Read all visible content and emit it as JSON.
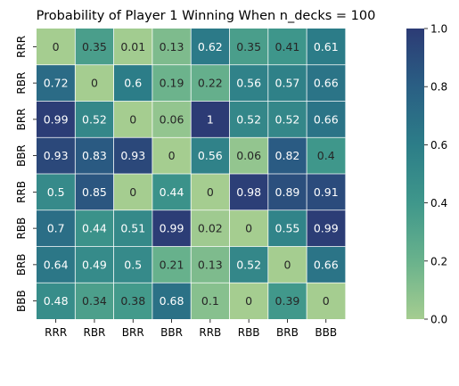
{
  "chart_data": {
    "type": "heatmap",
    "title": "Probability of Player 1 Winning When n_decks = 100",
    "xlabel": "",
    "ylabel": "",
    "x_categories": [
      "RRR",
      "RBR",
      "BRR",
      "BBR",
      "RRB",
      "RBB",
      "BRB",
      "BBB"
    ],
    "y_categories": [
      "RRR",
      "RBR",
      "BRR",
      "BBR",
      "RRB",
      "RBB",
      "BRB",
      "BBB"
    ],
    "values": [
      [
        0,
        0.35,
        0.01,
        0.13,
        0.62,
        0.35,
        0.41,
        0.61
      ],
      [
        0.72,
        0,
        0.6,
        0.19,
        0.22,
        0.56,
        0.57,
        0.66
      ],
      [
        0.99,
        0.52,
        0,
        0.06,
        1,
        0.52,
        0.52,
        0.66
      ],
      [
        0.93,
        0.83,
        0.93,
        0,
        0.56,
        0.06,
        0.82,
        0.4
      ],
      [
        0.5,
        0.85,
        0,
        0.44,
        0,
        0.98,
        0.89,
        0.91
      ],
      [
        0.7,
        0.44,
        0.51,
        0.99,
        0.02,
        0,
        0.55,
        0.99
      ],
      [
        0.64,
        0.49,
        0.5,
        0.21,
        0.13,
        0.52,
        0,
        0.66
      ],
      [
        0.48,
        0.34,
        0.38,
        0.68,
        0.1,
        0,
        0.39,
        0
      ]
    ],
    "value_range": [
      0,
      1
    ],
    "colorbar": {
      "ticks": [
        0.0,
        0.2,
        0.4,
        0.6,
        0.8,
        1.0
      ],
      "tick_labels": [
        "0.0",
        "0.2",
        "0.4",
        "0.6",
        "0.8",
        "1.0"
      ]
    },
    "colormap": "crest",
    "colormap_stops": [
      "#a5cd90",
      "#69b28c",
      "#3f978b",
      "#2c7d88",
      "#2a5f84",
      "#2c3b75"
    ],
    "grid_line_color": "#ffffff",
    "legend": "colorbar-right"
  }
}
